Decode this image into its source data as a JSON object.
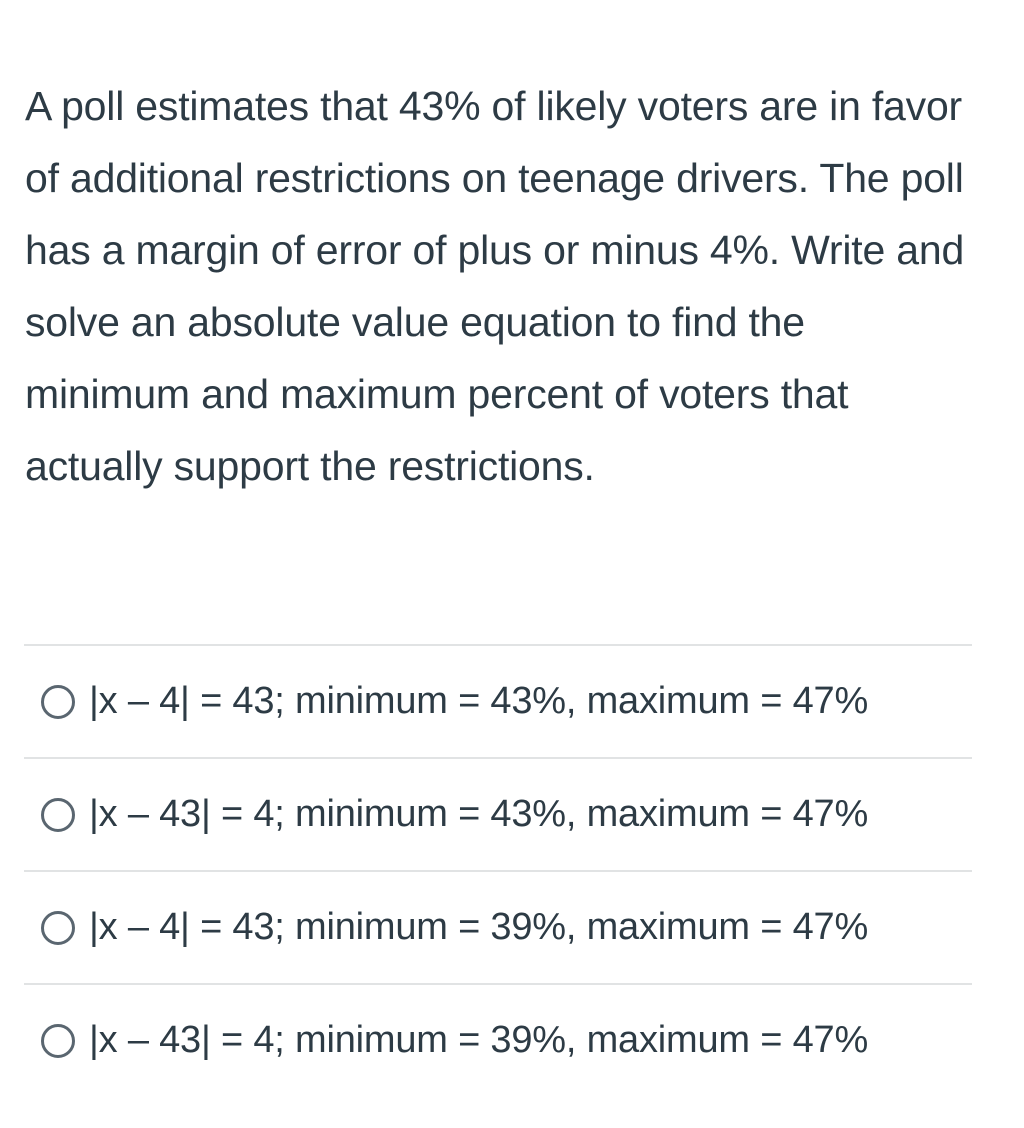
{
  "question": {
    "text": "A poll estimates that 43% of likely voters are in favor of additional restrictions on teenage drivers. The poll has a margin of error of plus or minus 4%. Write and solve an absolute value equation to find the minimum and maximum percent of voters that actually support the restrictions."
  },
  "answers": [
    {
      "label": "|x – 4| = 43; minimum = 43%, maximum = 47%",
      "selected": false
    },
    {
      "label": "|x – 43| = 4; minimum = 43%, maximum = 47%",
      "selected": false
    },
    {
      "label": "|x – 4| = 43; minimum = 39%, maximum = 47%",
      "selected": false
    },
    {
      "label": "|x – 43| = 4; minimum = 39%, maximum = 47%",
      "selected": false
    }
  ],
  "colors": {
    "text": "#2d3b45",
    "divider": "#e1e3e4",
    "radio_border": "#5a6670"
  },
  "icons": {
    "radio": "radio-unchecked-icon"
  }
}
